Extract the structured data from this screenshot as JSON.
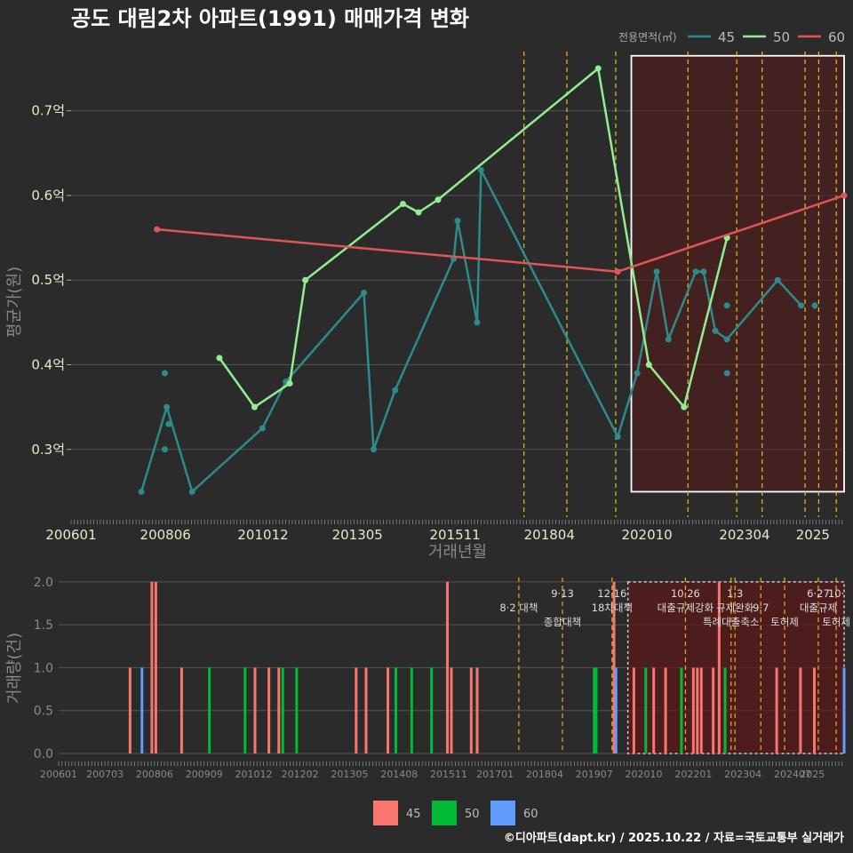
{
  "title": "공도 대림2차 아파트(1991) 매매가격 변화",
  "footer": "©디아파트(dapt.kr) / 2025.10.22 / 자료=국토교통부 실거래가",
  "colors": {
    "background": "#2b2b2c",
    "grid": "#555555",
    "s45": "#2e8b8b",
    "s50": "#90ee90",
    "s60": "#e05555",
    "bar45": "#f8766d",
    "bar50": "#00ba38",
    "bar60": "#619cff",
    "policy": "#e0c020",
    "highlight": "#5a1a1a"
  },
  "chart_data": [
    {
      "type": "line",
      "title": "공도 대림2차 아파트(1991) 매매가격 변화",
      "xlabel": "거래년월",
      "ylabel": "평균가(원)",
      "ylim": [
        0.22,
        0.77
      ],
      "xlim": [
        2006.0,
        2025.8
      ],
      "legend_title": "전용면적(㎡)",
      "legend_position": "top-right",
      "x_ticks": [
        "200601",
        "200806",
        "201012",
        "201305",
        "201511",
        "201804",
        "202010",
        "202304",
        "2025"
      ],
      "y_ticks": [
        {
          "value": 0.3,
          "label": "0.3억"
        },
        {
          "value": 0.4,
          "label": "0.4억"
        },
        {
          "value": 0.5,
          "label": "0.5억"
        },
        {
          "value": 0.6,
          "label": "0.6억"
        },
        {
          "value": 0.7,
          "label": "0.7억"
        }
      ],
      "series": [
        {
          "name": "45",
          "line": [
            [
              2007.8,
              0.25
            ],
            [
              2008.45,
              0.35
            ],
            [
              2009.1,
              0.25
            ],
            [
              2010.9,
              0.325
            ],
            [
              2011.5,
              0.38
            ],
            [
              2013.5,
              0.485
            ],
            [
              2013.75,
              0.3
            ],
            [
              2014.3,
              0.37
            ],
            [
              2015.8,
              0.525
            ],
            [
              2015.9,
              0.57
            ],
            [
              2016.4,
              0.45
            ],
            [
              2016.5,
              0.63
            ],
            [
              2020.0,
              0.315
            ],
            [
              2020.5,
              0.39
            ],
            [
              2021.0,
              0.51
            ],
            [
              2021.3,
              0.43
            ],
            [
              2022.0,
              0.51
            ],
            [
              2022.2,
              0.51
            ],
            [
              2022.5,
              0.44
            ],
            [
              2022.8,
              0.43
            ],
            [
              2024.1,
              0.5
            ],
            [
              2024.7,
              0.47
            ]
          ],
          "points_extra": [
            [
              2008.4,
              0.39
            ],
            [
              2008.4,
              0.3
            ],
            [
              2008.5,
              0.33
            ],
            [
              2022.8,
              0.47
            ],
            [
              2022.8,
              0.39
            ],
            [
              2025.05,
              0.47
            ]
          ]
        },
        {
          "name": "50",
          "line": [
            [
              2009.8,
              0.408
            ],
            [
              2010.7,
              0.35
            ],
            [
              2011.6,
              0.378
            ],
            [
              2012.0,
              0.5
            ],
            [
              2014.5,
              0.59
            ],
            [
              2014.9,
              0.58
            ],
            [
              2015.4,
              0.595
            ],
            [
              2019.5,
              0.75
            ],
            [
              2020.8,
              0.4
            ],
            [
              2021.7,
              0.35
            ],
            [
              2022.8,
              0.55
            ]
          ],
          "points_extra": []
        },
        {
          "name": "60",
          "line": [
            [
              2008.2,
              0.56
            ],
            [
              2020.0,
              0.51
            ],
            [
              2025.8,
              0.6
            ]
          ],
          "points_extra": []
        }
      ],
      "policy_lines": [
        2017.6,
        2018.7,
        2019.95,
        2021.8,
        2023.05,
        2023.7,
        2024.8,
        2025.15,
        2025.6
      ],
      "highlight_range": {
        "x": [
          2020.35,
          2025.8
        ],
        "y": [
          0.25,
          0.765
        ]
      }
    },
    {
      "type": "bar",
      "xlabel": "",
      "ylabel": "거래량(건)",
      "ylim": [
        0,
        2.05
      ],
      "xlim": [
        2006.0,
        2025.8
      ],
      "legend_position": "bottom",
      "x_ticks": [
        "200601",
        "200703",
        "200806",
        "200909",
        "201012",
        "201202",
        "201305",
        "201408",
        "201511",
        "201701",
        "201804",
        "201907",
        "202010",
        "202201",
        "202304",
        "202407",
        "2025"
      ],
      "y_ticks": [
        {
          "value": 0.0,
          "label": "0.0"
        },
        {
          "value": 0.5,
          "label": "0.5"
        },
        {
          "value": 1.0,
          "label": "1.0"
        },
        {
          "value": 1.5,
          "label": "1.5"
        },
        {
          "value": 2.0,
          "label": "2.0"
        }
      ],
      "legend": [
        "45",
        "50",
        "60"
      ],
      "bars": [
        {
          "x": 2007.8,
          "value": 1,
          "series": "45"
        },
        {
          "x": 2008.1,
          "value": 1,
          "series": "60"
        },
        {
          "x": 2008.35,
          "value": 2,
          "series": "45"
        },
        {
          "x": 2008.45,
          "value": 2,
          "series": "45"
        },
        {
          "x": 2009.1,
          "value": 1,
          "series": "45"
        },
        {
          "x": 2009.8,
          "value": 1,
          "series": "50"
        },
        {
          "x": 2010.7,
          "value": 1,
          "series": "50"
        },
        {
          "x": 2010.95,
          "value": 1,
          "series": "45"
        },
        {
          "x": 2011.3,
          "value": 1,
          "series": "45"
        },
        {
          "x": 2011.55,
          "value": 1,
          "series": "45"
        },
        {
          "x": 2011.65,
          "value": 1,
          "series": "50"
        },
        {
          "x": 2012.0,
          "value": 1,
          "series": "50"
        },
        {
          "x": 2013.5,
          "value": 1,
          "series": "45"
        },
        {
          "x": 2013.75,
          "value": 1,
          "series": "45"
        },
        {
          "x": 2014.3,
          "value": 1,
          "series": "45"
        },
        {
          "x": 2014.5,
          "value": 1,
          "series": "50"
        },
        {
          "x": 2014.9,
          "value": 1,
          "series": "50"
        },
        {
          "x": 2015.4,
          "value": 1,
          "series": "50"
        },
        {
          "x": 2015.8,
          "value": 2,
          "series": "45"
        },
        {
          "x": 2015.9,
          "value": 1,
          "series": "45"
        },
        {
          "x": 2016.4,
          "value": 1,
          "series": "45"
        },
        {
          "x": 2016.55,
          "value": 1,
          "series": "45"
        },
        {
          "x": 2019.5,
          "value": 1,
          "series": "50"
        },
        {
          "x": 2019.55,
          "value": 1,
          "series": "50"
        },
        {
          "x": 2020.0,
          "value": 2,
          "series": "45"
        },
        {
          "x": 2020.05,
          "value": 1,
          "series": "60"
        },
        {
          "x": 2020.5,
          "value": 1,
          "series": "45"
        },
        {
          "x": 2020.8,
          "value": 1,
          "series": "50"
        },
        {
          "x": 2021.0,
          "value": 1,
          "series": "45"
        },
        {
          "x": 2021.3,
          "value": 1,
          "series": "45"
        },
        {
          "x": 2021.7,
          "value": 1,
          "series": "50"
        },
        {
          "x": 2022.0,
          "value": 1,
          "series": "45"
        },
        {
          "x": 2022.1,
          "value": 1,
          "series": "45"
        },
        {
          "x": 2022.2,
          "value": 1,
          "series": "45"
        },
        {
          "x": 2022.5,
          "value": 1,
          "series": "45"
        },
        {
          "x": 2022.65,
          "value": 2,
          "series": "45"
        },
        {
          "x": 2022.8,
          "value": 1,
          "series": "50"
        },
        {
          "x": 2024.1,
          "value": 1,
          "series": "45"
        },
        {
          "x": 2024.7,
          "value": 1,
          "series": "45"
        },
        {
          "x": 2025.05,
          "value": 1,
          "series": "45"
        },
        {
          "x": 2025.8,
          "value": 1,
          "series": "60"
        }
      ],
      "policy_events": [
        {
          "x": 2017.6,
          "label": "8·2 대책",
          "row": 1
        },
        {
          "x": 2018.7,
          "label": "9·13",
          "row": 0
        },
        {
          "x": 2018.7,
          "label": "종합대책",
          "row": 2
        },
        {
          "x": 2019.95,
          "label": "12·16",
          "row": 0
        },
        {
          "x": 2019.95,
          "label": "18차대책",
          "row": 1
        },
        {
          "x": 2021.8,
          "label": "10·26",
          "row": 0
        },
        {
          "x": 2021.8,
          "label": "대출규제강화",
          "row": 1
        },
        {
          "x": 2023.05,
          "label": "1·3",
          "row": 0
        },
        {
          "x": 2023.05,
          "label": "규제완화",
          "row": 1
        },
        {
          "x": 2023.7,
          "label": "9·7",
          "row": 1
        },
        {
          "x": 2022.95,
          "label": "특례대출축소",
          "row": 2
        },
        {
          "x": 2024.3,
          "label": "토허제",
          "row": 2
        },
        {
          "x": 2025.15,
          "label": "6·27",
          "row": 0
        },
        {
          "x": 2025.15,
          "label": "대출규제",
          "row": 1
        },
        {
          "x": 2025.6,
          "label": "10·",
          "row": 0
        },
        {
          "x": 2025.6,
          "label": "토허제",
          "row": 2
        }
      ],
      "highlight_range": {
        "x": [
          2020.35,
          2025.8
        ],
        "y": [
          0,
          2.0
        ]
      }
    }
  ]
}
